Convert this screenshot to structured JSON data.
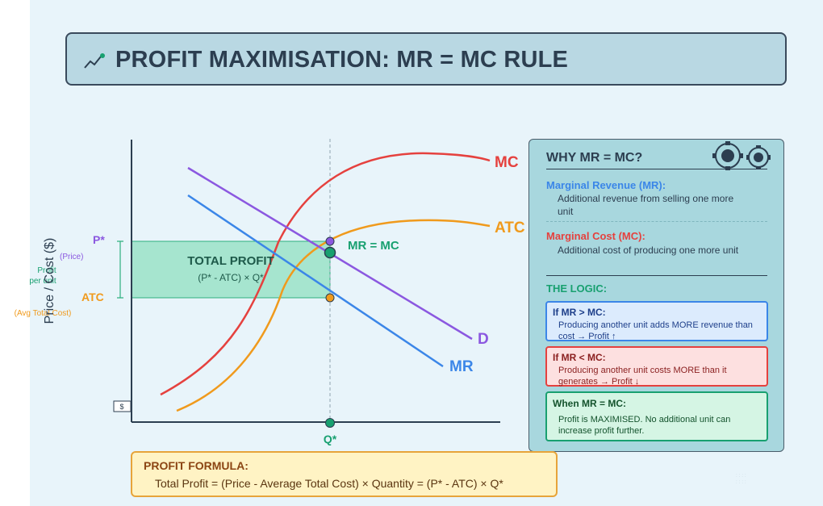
{
  "title": "PROFIT MAXIMISATION: MR = MC RULE",
  "dollar_tick": "$",
  "labels": {
    "mc": "MC",
    "atc_curve": "ATC",
    "demand": "D",
    "mr": "MR",
    "mr_mc": "MR = MC",
    "total_profit": "TOTAL PROFIT",
    "total_profit_formula": "(P* - ATC) × Q*",
    "p_star": "P*",
    "price_note": "(Price)",
    "profit_per_unit_1": "Profit",
    "profit_per_unit_2": "per unit",
    "atc_axis": "ATC",
    "atc_note": "(Avg Total Cost)",
    "y_axis": "Price / Cost ($)",
    "q_star": "Q*"
  },
  "side": {
    "title": "WHY MR = MC?",
    "mr_head": "Marginal Revenue (MR):",
    "mr_text": "Additional revenue from selling one more unit",
    "mc_head": "Marginal Cost (MC):",
    "mc_text": "Additional cost of producing one more unit",
    "logic_head": "THE LOGIC:",
    "cards": [
      {
        "head": "If MR > MC:",
        "text": "Producing another unit adds MORE revenue than cost → Profit ↑"
      },
      {
        "head": "If MR < MC:",
        "text": "Producing another unit costs MORE than it generates → Profit ↓"
      },
      {
        "head": "When MR = MC:",
        "text": "Profit is MAXIMISED. No additional unit can increase profit further."
      }
    ]
  },
  "formula": {
    "head": "PROFIT FORMULA:",
    "text": "Total Profit = (Price - Average Total Cost) × Quantity = (P* - ATC) × Q*"
  },
  "colors": {
    "mc": "#e5413e",
    "atc": "#f09a1c",
    "demand": "#8b58e0",
    "mr": "#3b86e8",
    "profit": "#18a070",
    "title_bg": "#b9d8e3",
    "panel_bg": "#a8d7de",
    "formula_bg": "#fff3c4"
  }
}
